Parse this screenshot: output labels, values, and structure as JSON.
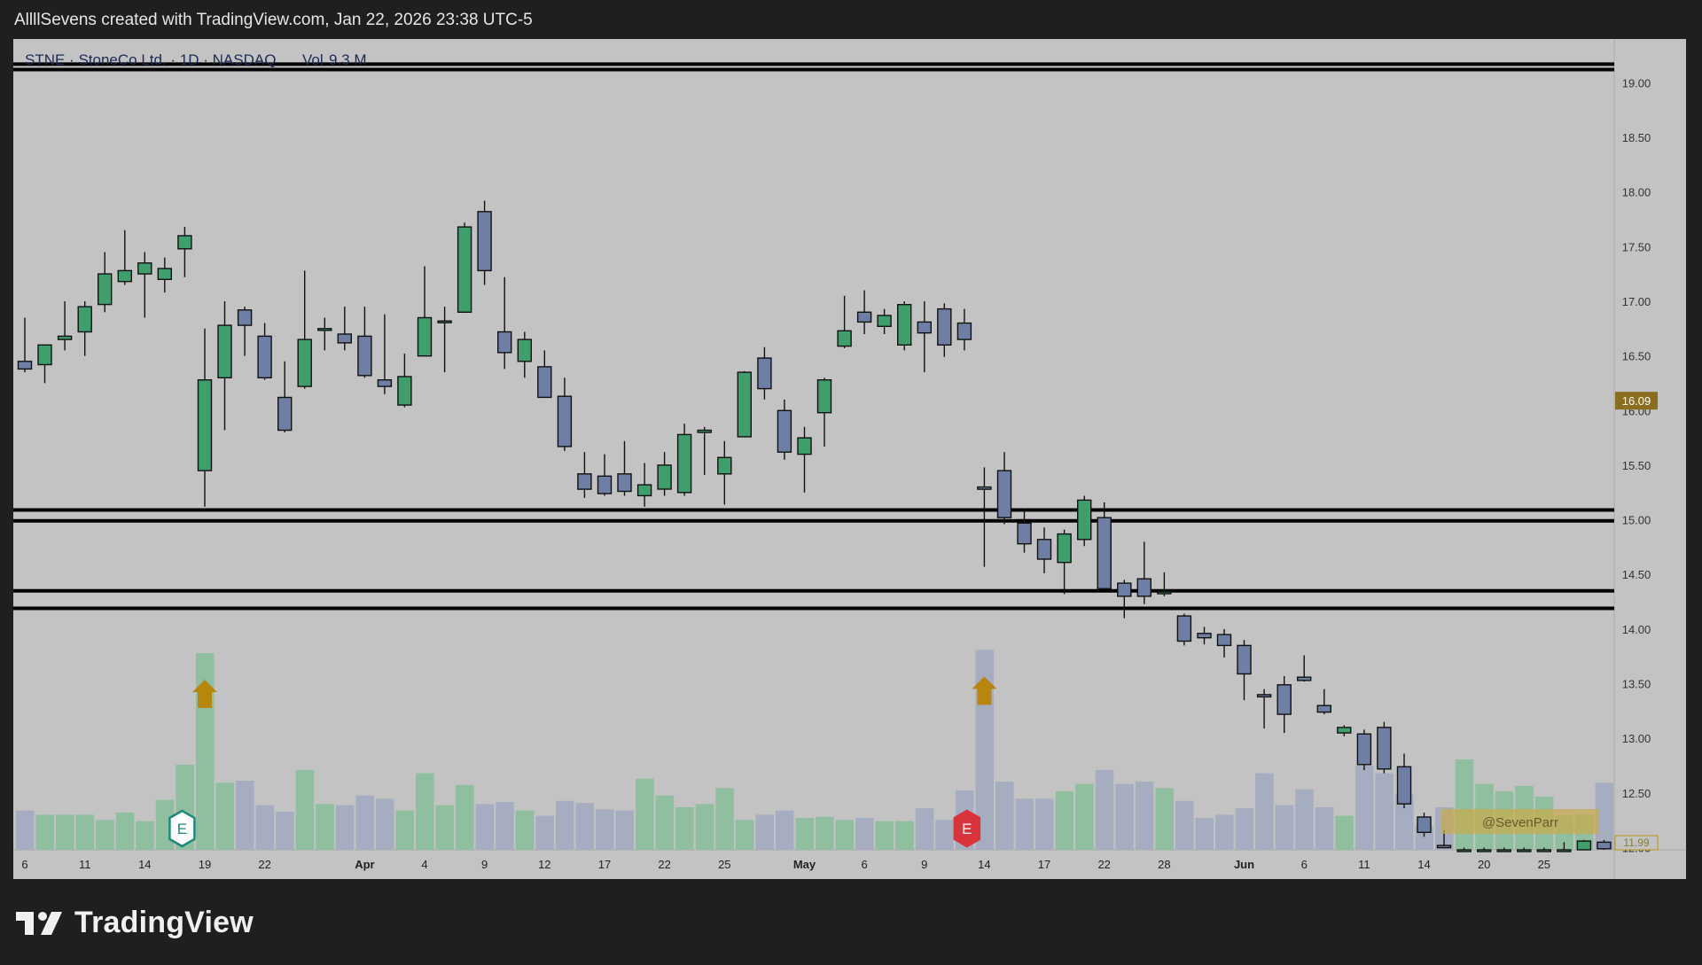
{
  "header": {
    "caption": "AllllSevens created with TradingView.com, Jan 22, 2026 23:38 UTC-5"
  },
  "footer": {
    "logo_text": "TradingView"
  },
  "colors": {
    "background": "#c3c3c3",
    "bull": "#3e9f6c",
    "bear": "#6e7ea5",
    "volume_bull": "#8fbf9f",
    "volume_bear": "#a6adc1",
    "level_lines": "#000000",
    "arrow": "#b8860b",
    "earnings_bull": "#1e8b7a",
    "earnings_bear": "#d9343b",
    "price_badge": "#8a6d1e"
  },
  "chart_data": {
    "type": "candlestick",
    "title": "STNE · StoneCo Ltd. · 1D · NASDAQ",
    "volume_label": "Vol",
    "volume_value": "9.3 M",
    "xlabel": "",
    "ylabel": "",
    "ylim": [
      11.98,
      19.4
    ],
    "grid": false,
    "y_ticks": [
      "19.00",
      "18.50",
      "18.00",
      "17.50",
      "17.00",
      "16.50",
      "16.00",
      "15.50",
      "15.00",
      "14.50",
      "14.00",
      "13.50",
      "13.00",
      "12.50",
      "12.00"
    ],
    "x_ticks": [
      {
        "label": "6",
        "i": 0
      },
      {
        "label": "11",
        "i": 3
      },
      {
        "label": "14",
        "i": 6
      },
      {
        "label": "19",
        "i": 9
      },
      {
        "label": "22",
        "i": 12
      },
      {
        "label": "Apr",
        "i": 17
      },
      {
        "label": "4",
        "i": 20
      },
      {
        "label": "9",
        "i": 23
      },
      {
        "label": "12",
        "i": 26
      },
      {
        "label": "17",
        "i": 29
      },
      {
        "label": "22",
        "i": 32
      },
      {
        "label": "25",
        "i": 35
      },
      {
        "label": "May",
        "i": 39
      },
      {
        "label": "6",
        "i": 42
      },
      {
        "label": "9",
        "i": 45
      },
      {
        "label": "14",
        "i": 48
      },
      {
        "label": "17",
        "i": 51
      },
      {
        "label": "22",
        "i": 54
      },
      {
        "label": "28",
        "i": 57
      },
      {
        "label": "Jun",
        "i": 61
      },
      {
        "label": "6",
        "i": 64
      },
      {
        "label": "11",
        "i": 67
      },
      {
        "label": "14",
        "i": 70
      },
      {
        "label": "20",
        "i": 73
      },
      {
        "label": "25",
        "i": 76
      }
    ],
    "candles": [
      {
        "o": 16.45,
        "h": 16.85,
        "l": 16.35,
        "c": 16.38,
        "v": 0.37
      },
      {
        "o": 16.42,
        "h": 16.6,
        "l": 16.25,
        "c": 16.6,
        "v": 0.33
      },
      {
        "o": 16.65,
        "h": 17.0,
        "l": 16.55,
        "c": 16.68,
        "v": 0.33
      },
      {
        "o": 16.72,
        "h": 17.0,
        "l": 16.5,
        "c": 16.95,
        "v": 0.33
      },
      {
        "o": 16.97,
        "h": 17.45,
        "l": 16.9,
        "c": 17.25,
        "v": 0.28
      },
      {
        "o": 17.18,
        "h": 17.65,
        "l": 17.15,
        "c": 17.28,
        "v": 0.35
      },
      {
        "o": 17.25,
        "h": 17.45,
        "l": 16.85,
        "c": 17.35,
        "v": 0.27
      },
      {
        "o": 17.2,
        "h": 17.4,
        "l": 17.08,
        "c": 17.3,
        "v": 0.47
      },
      {
        "o": 17.48,
        "h": 17.68,
        "l": 17.22,
        "c": 17.6,
        "v": 0.8
      },
      {
        "o": 15.45,
        "h": 16.75,
        "l": 15.12,
        "c": 16.28,
        "v": 1.85,
        "e": "bull",
        "arrow": true
      },
      {
        "o": 16.3,
        "h": 17.0,
        "l": 15.82,
        "c": 16.78,
        "v": 0.63
      },
      {
        "o": 16.92,
        "h": 16.95,
        "l": 16.5,
        "c": 16.78,
        "v": 0.65
      },
      {
        "o": 16.68,
        "h": 16.8,
        "l": 16.28,
        "c": 16.3,
        "v": 0.42
      },
      {
        "o": 16.12,
        "h": 16.45,
        "l": 15.8,
        "c": 15.82,
        "v": 0.36
      },
      {
        "o": 16.22,
        "h": 17.28,
        "l": 16.2,
        "c": 16.65,
        "v": 0.75
      },
      {
        "o": 16.75,
        "h": 16.85,
        "l": 16.55,
        "c": 16.75,
        "v": 0.43
      },
      {
        "o": 16.7,
        "h": 16.95,
        "l": 16.55,
        "c": 16.62,
        "v": 0.42
      },
      {
        "o": 16.68,
        "h": 16.95,
        "l": 16.3,
        "c": 16.32,
        "v": 0.51
      },
      {
        "o": 16.28,
        "h": 16.88,
        "l": 16.15,
        "c": 16.22,
        "v": 0.48
      },
      {
        "o": 16.05,
        "h": 16.52,
        "l": 16.03,
        "c": 16.31,
        "v": 0.37
      },
      {
        "o": 16.5,
        "h": 17.32,
        "l": 16.5,
        "c": 16.85,
        "v": 0.72
      },
      {
        "o": 16.82,
        "h": 16.95,
        "l": 16.35,
        "c": 16.82,
        "v": 0.42
      },
      {
        "o": 16.9,
        "h": 17.72,
        "l": 16.9,
        "c": 17.68,
        "v": 0.61
      },
      {
        "o": 17.82,
        "h": 17.92,
        "l": 17.15,
        "c": 17.28,
        "v": 0.43
      },
      {
        "o": 16.72,
        "h": 17.22,
        "l": 16.38,
        "c": 16.53,
        "v": 0.45
      },
      {
        "o": 16.45,
        "h": 16.72,
        "l": 16.3,
        "c": 16.65,
        "v": 0.37
      },
      {
        "o": 16.4,
        "h": 16.55,
        "l": 16.12,
        "c": 16.12,
        "v": 0.32
      },
      {
        "o": 16.13,
        "h": 16.3,
        "l": 15.63,
        "c": 15.67,
        "v": 0.46
      },
      {
        "o": 15.42,
        "h": 15.62,
        "l": 15.2,
        "c": 15.28,
        "v": 0.44
      },
      {
        "o": 15.4,
        "h": 15.6,
        "l": 15.22,
        "c": 15.24,
        "v": 0.38
      },
      {
        "o": 15.42,
        "h": 15.72,
        "l": 15.22,
        "c": 15.26,
        "v": 0.37
      },
      {
        "o": 15.22,
        "h": 15.52,
        "l": 15.12,
        "c": 15.32,
        "v": 0.67
      },
      {
        "o": 15.28,
        "h": 15.62,
        "l": 15.22,
        "c": 15.5,
        "v": 0.51
      },
      {
        "o": 15.25,
        "h": 15.88,
        "l": 15.22,
        "c": 15.78,
        "v": 0.4
      },
      {
        "o": 15.8,
        "h": 15.85,
        "l": 15.41,
        "c": 15.82,
        "v": 0.43
      },
      {
        "o": 15.42,
        "h": 15.72,
        "l": 15.14,
        "c": 15.57,
        "v": 0.58
      },
      {
        "o": 15.76,
        "h": 16.36,
        "l": 15.76,
        "c": 16.35,
        "v": 0.28
      },
      {
        "o": 16.48,
        "h": 16.58,
        "l": 16.1,
        "c": 16.2,
        "v": 0.33
      },
      {
        "o": 16.0,
        "h": 16.1,
        "l": 15.55,
        "c": 15.62,
        "v": 0.37
      },
      {
        "o": 15.6,
        "h": 15.85,
        "l": 15.25,
        "c": 15.75,
        "v": 0.3
      },
      {
        "o": 15.98,
        "h": 16.3,
        "l": 15.67,
        "c": 16.28,
        "v": 0.31
      },
      {
        "o": 16.59,
        "h": 17.05,
        "l": 16.57,
        "c": 16.73,
        "v": 0.28
      },
      {
        "o": 16.9,
        "h": 17.1,
        "l": 16.7,
        "c": 16.81,
        "v": 0.3
      },
      {
        "o": 16.77,
        "h": 16.93,
        "l": 16.7,
        "c": 16.87,
        "v": 0.27
      },
      {
        "o": 16.6,
        "h": 17.0,
        "l": 16.55,
        "c": 16.97,
        "v": 0.27
      },
      {
        "o": 16.81,
        "h": 17.0,
        "l": 16.35,
        "c": 16.71,
        "v": 0.39
      },
      {
        "o": 16.93,
        "h": 16.98,
        "l": 16.49,
        "c": 16.6,
        "v": 0.28
      },
      {
        "o": 16.8,
        "h": 16.93,
        "l": 16.55,
        "c": 16.65,
        "v": 0.56
      },
      {
        "o": 15.3,
        "h": 15.48,
        "l": 14.57,
        "c": 15.28,
        "v": 1.88,
        "e": "bear",
        "arrow": true
      },
      {
        "o": 15.45,
        "h": 15.62,
        "l": 14.96,
        "c": 15.02,
        "v": 0.64
      },
      {
        "o": 14.97,
        "h": 15.1,
        "l": 14.7,
        "c": 14.78,
        "v": 0.48
      },
      {
        "o": 14.82,
        "h": 14.93,
        "l": 14.51,
        "c": 14.64,
        "v": 0.48
      },
      {
        "o": 14.61,
        "h": 14.91,
        "l": 14.32,
        "c": 14.87,
        "v": 0.55
      },
      {
        "o": 14.82,
        "h": 15.22,
        "l": 14.76,
        "c": 15.18,
        "v": 0.62
      },
      {
        "o": 15.02,
        "h": 15.16,
        "l": 14.35,
        "c": 14.37,
        "v": 0.75
      },
      {
        "o": 14.42,
        "h": 14.45,
        "l": 14.1,
        "c": 14.3,
        "v": 0.62
      },
      {
        "o": 14.46,
        "h": 14.8,
        "l": 14.23,
        "c": 14.3,
        "v": 0.64
      },
      {
        "o": 14.33,
        "h": 14.52,
        "l": 14.3,
        "c": 14.34,
        "v": 0.58
      },
      {
        "o": 14.12,
        "h": 14.14,
        "l": 13.85,
        "c": 13.89,
        "v": 0.46
      },
      {
        "o": 13.96,
        "h": 14.02,
        "l": 13.86,
        "c": 13.92,
        "v": 0.3
      },
      {
        "o": 13.95,
        "h": 14.0,
        "l": 13.74,
        "c": 13.85,
        "v": 0.33
      },
      {
        "o": 13.85,
        "h": 13.9,
        "l": 13.35,
        "c": 13.59,
        "v": 0.39
      },
      {
        "o": 13.4,
        "h": 13.45,
        "l": 13.09,
        "c": 13.38,
        "v": 0.72
      },
      {
        "o": 13.49,
        "h": 13.57,
        "l": 13.05,
        "c": 13.22,
        "v": 0.42
      },
      {
        "o": 13.56,
        "h": 13.76,
        "l": 13.52,
        "c": 13.53,
        "v": 0.57
      },
      {
        "o": 13.3,
        "h": 13.45,
        "l": 13.22,
        "c": 13.24,
        "v": 0.4
      },
      {
        "o": 13.05,
        "h": 13.12,
        "l": 13.02,
        "c": 13.1,
        "v": 0.32
      },
      {
        "o": 13.04,
        "h": 13.08,
        "l": 12.71,
        "c": 12.76,
        "v": 0.79
      },
      {
        "o": 13.1,
        "h": 13.15,
        "l": 12.68,
        "c": 12.72,
        "v": 0.72
      },
      {
        "o": 12.74,
        "h": 12.86,
        "l": 12.36,
        "c": 12.4,
        "v": 0.52
      },
      {
        "o": 12.28,
        "h": 12.32,
        "l": 12.1,
        "c": 12.14,
        "v": 0.22
      },
      {
        "o": 12.02,
        "h": 12.16,
        "l": 12.0,
        "c": 12.0,
        "v": 0.4
      },
      {
        "o": 11.98,
        "h": 12.0,
        "l": 11.98,
        "c": 11.98,
        "v": 0.85
      },
      {
        "o": 11.98,
        "h": 12.0,
        "l": 11.98,
        "c": 11.98,
        "v": 0.62
      },
      {
        "o": 11.98,
        "h": 12.0,
        "l": 11.98,
        "c": 11.98,
        "v": 0.55
      },
      {
        "o": 11.98,
        "h": 12.0,
        "l": 11.98,
        "c": 11.98,
        "v": 0.6
      },
      {
        "o": 11.98,
        "h": 12.0,
        "l": 11.98,
        "c": 11.98,
        "v": 0.5
      },
      {
        "o": 11.98,
        "h": 12.05,
        "l": 11.98,
        "c": 11.98,
        "v": 0.32
      },
      {
        "o": 11.98,
        "h": 12.07,
        "l": 11.98,
        "c": 12.06,
        "v": 0.33
      },
      {
        "o": 12.05,
        "h": 12.07,
        "l": 11.98,
        "c": 11.99,
        "v": 0.63
      }
    ],
    "horizontal_levels": [
      19.17,
      19.12,
      15.09,
      14.99,
      14.35,
      14.19
    ],
    "current_price": "16.09",
    "current_price_value": 16.09,
    "last_price": "11.99",
    "last_price_value": 11.99,
    "earnings_marker_text": "E",
    "watermark": "@SevenParr"
  }
}
